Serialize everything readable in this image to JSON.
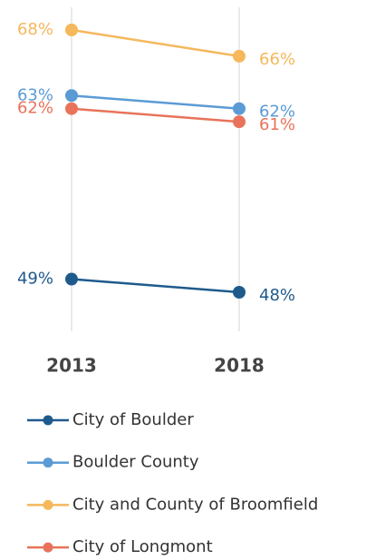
{
  "chart_data": {
    "type": "line",
    "categories": [
      "2013",
      "2018"
    ],
    "series": [
      {
        "name": "City of Boulder",
        "color": "#1f5a8c",
        "values": [
          49,
          48
        ],
        "value_labels": [
          "49%",
          "48%"
        ]
      },
      {
        "name": "Boulder County",
        "color": "#5b9bd5",
        "values": [
          63,
          62
        ],
        "value_labels": [
          "63%",
          "62%"
        ]
      },
      {
        "name": "City and County of Broomfield",
        "color": "#f5b85c",
        "values": [
          68,
          66
        ],
        "value_labels": [
          "68%",
          "66%"
        ]
      },
      {
        "name": "City of Longmont",
        "color": "#e8735a",
        "values": [
          62,
          61
        ],
        "value_labels": [
          "62%",
          "61%"
        ]
      }
    ],
    "grid": true
  }
}
